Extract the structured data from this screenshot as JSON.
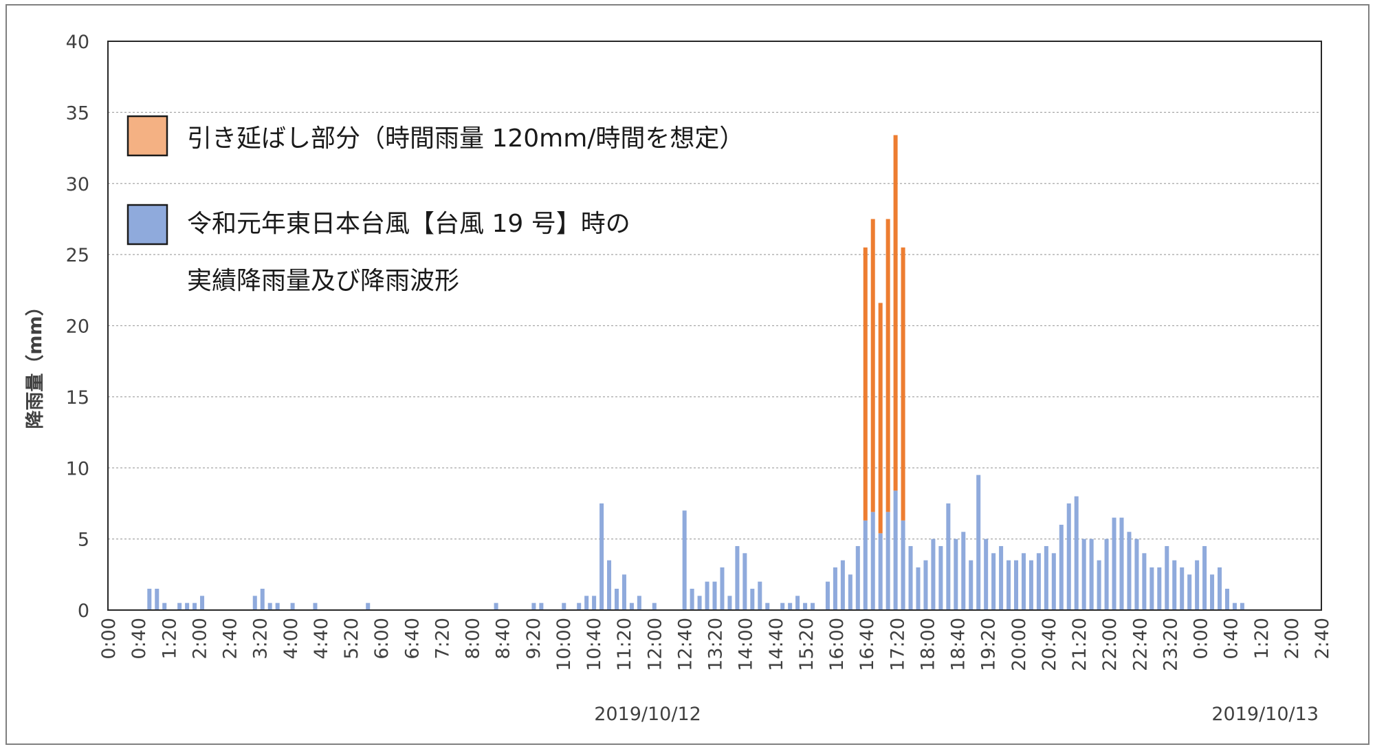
{
  "chart_data": {
    "type": "bar",
    "ylabel": "降雨量（mm）",
    "ylim": [
      0,
      40
    ],
    "yticks": [
      "0",
      "5",
      "10",
      "15",
      "20",
      "25",
      "30",
      "35",
      "40"
    ],
    "xticks": [
      "0:00",
      "0:40",
      "1:20",
      "2:00",
      "2:40",
      "3:20",
      "4:00",
      "4:40",
      "5:20",
      "6:00",
      "6:40",
      "7:20",
      "8:00",
      "8:40",
      "9:20",
      "10:00",
      "10:40",
      "11:20",
      "12:00",
      "12:40",
      "13:20",
      "14:00",
      "14:40",
      "15:20",
      "16:00",
      "16:40",
      "17:20",
      "18:00",
      "18:40",
      "19:20",
      "20:00",
      "20:40",
      "21:20",
      "22:00",
      "22:40",
      "23:20",
      "0:00",
      "0:40",
      "1:20",
      "2:00",
      "2:40"
    ],
    "date_labels": [
      "2019/10/12",
      "2019/10/13"
    ],
    "interval_minutes": 10,
    "grid": true,
    "stacked": true,
    "series": [
      {
        "name": "令和元年東日本台風【台風 19 号】時の実績降雨量及び降雨波形",
        "color": "#8faadc",
        "values": [
          0,
          0,
          0,
          0,
          0,
          1.5,
          1.5,
          0.5,
          0,
          0.5,
          0.5,
          0.5,
          1,
          0,
          0,
          0,
          0,
          0,
          0,
          1,
          1.5,
          0.5,
          0.5,
          0,
          0.5,
          0,
          0,
          0.5,
          0,
          0,
          0,
          0,
          0,
          0,
          0.5,
          0,
          0,
          0,
          0,
          0,
          0,
          0,
          0,
          0,
          0,
          0,
          0,
          0,
          0,
          0,
          0,
          0.5,
          0,
          0,
          0,
          0,
          0.5,
          0.5,
          0,
          0,
          0.5,
          0,
          0.5,
          1,
          1,
          7.5,
          3.5,
          1.5,
          2.5,
          0.5,
          1,
          0,
          0.5,
          0,
          0,
          0,
          7,
          1.5,
          1,
          2,
          2,
          3,
          1,
          4.5,
          4,
          1.5,
          2,
          0.5,
          0,
          0.5,
          0.5,
          1,
          0.5,
          0.5,
          0,
          2,
          3,
          3.5,
          2.5,
          4.5,
          6.3,
          6.9,
          5.4,
          6.9,
          8.4,
          6.3,
          4.5,
          3,
          3.5,
          5,
          4.5,
          7.5,
          5,
          5.5,
          3.5,
          9.5,
          5,
          4,
          4.5,
          3.5,
          3.5,
          4,
          3.5,
          4,
          4.5,
          4,
          6,
          7.5,
          8,
          5,
          5,
          3.5,
          5,
          6.5,
          6.5,
          5.5,
          5,
          4,
          3,
          3,
          4.5,
          3.5,
          3,
          2.5,
          3.5,
          4.5,
          2.5,
          3,
          1.5,
          0.5,
          0.5,
          0,
          0,
          0,
          0,
          0,
          0,
          0,
          0,
          0,
          0
        ]
      },
      {
        "name": "引き延ばし部分（時間雨量 120mm/時間を想定）",
        "color": "#ed7d31",
        "values": [
          0,
          0,
          0,
          0,
          0,
          0,
          0,
          0,
          0,
          0,
          0,
          0,
          0,
          0,
          0,
          0,
          0,
          0,
          0,
          0,
          0,
          0,
          0,
          0,
          0,
          0,
          0,
          0,
          0,
          0,
          0,
          0,
          0,
          0,
          0,
          0,
          0,
          0,
          0,
          0,
          0,
          0,
          0,
          0,
          0,
          0,
          0,
          0,
          0,
          0,
          0,
          0,
          0,
          0,
          0,
          0,
          0,
          0,
          0,
          0,
          0,
          0,
          0,
          0,
          0,
          0,
          0,
          0,
          0,
          0,
          0,
          0,
          0,
          0,
          0,
          0,
          0,
          0,
          0,
          0,
          0,
          0,
          0,
          0,
          0,
          0,
          0,
          0,
          0,
          0,
          0,
          0,
          0,
          0,
          0,
          0,
          0,
          0,
          0,
          0,
          19.2,
          20.6,
          16.2,
          20.6,
          25,
          19.2,
          0,
          0,
          0,
          0,
          0,
          0,
          0,
          0,
          0,
          0,
          0,
          0,
          0,
          0,
          0,
          0,
          0,
          0,
          0,
          0,
          0,
          0,
          0,
          0,
          0,
          0,
          0,
          0,
          0,
          0,
          0,
          0,
          0,
          0,
          0,
          0,
          0,
          0,
          0,
          0,
          0,
          0,
          0,
          0,
          0,
          0,
          0,
          0,
          0,
          0,
          0,
          0,
          0,
          0,
          0
        ]
      }
    ],
    "legend": [
      {
        "swatch_color": "#f4b183",
        "border_color": "#1a1a1a",
        "lines": [
          "引き延ばし部分（時間雨量 120mm/時間を想定）"
        ]
      },
      {
        "swatch_color": "#8faadc",
        "border_color": "#1a1a1a",
        "lines": [
          "令和元年東日本台風【台風 19 号】時の",
          "実績降雨量及び降雨波形"
        ]
      }
    ],
    "legend_position": "top-left"
  }
}
